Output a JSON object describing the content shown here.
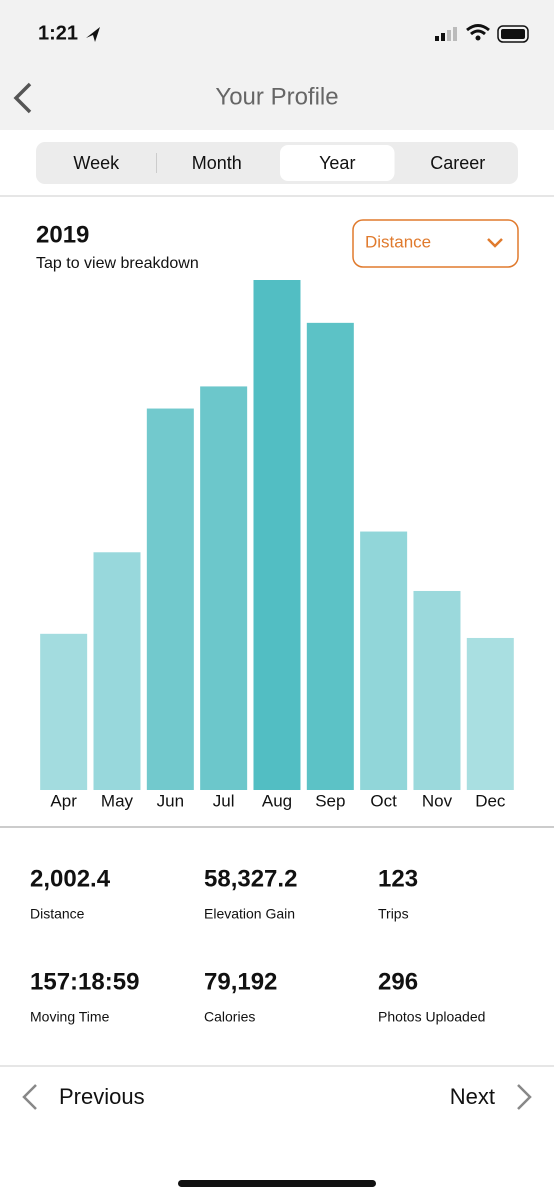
{
  "status_bar": {
    "time": "1:21"
  },
  "header": {
    "title": "Your Profile"
  },
  "tabs": {
    "items": [
      "Week",
      "Month",
      "Year",
      "Career"
    ],
    "selected": 2
  },
  "chart_header": {
    "year": "2019",
    "hint": "Tap to view breakdown",
    "metric": "Distance"
  },
  "chart_data": {
    "type": "bar",
    "categories": [
      "Apr",
      "May",
      "Jun",
      "Jul",
      "Aug",
      "Sep",
      "Oct",
      "Nov",
      "Dec"
    ],
    "values": [
      113,
      172,
      276,
      292,
      369,
      338,
      187,
      144,
      110
    ],
    "colors": [
      "#a3dcdf",
      "#98d8dc",
      "#72c9cd",
      "#6cc7cb",
      "#52bec3",
      "#5cc2c6",
      "#91d6d9",
      "#9bd9dc",
      "#a9dfe1"
    ],
    "ylim": [
      0,
      369
    ]
  },
  "stats": [
    {
      "value": "2,002.4",
      "label": "Distance"
    },
    {
      "value": "58,327.2",
      "label": "Elevation Gain"
    },
    {
      "value": "123",
      "label": "Trips"
    },
    {
      "value": "157:18:59",
      "label": "Moving Time"
    },
    {
      "value": "79,192",
      "label": "Calories"
    },
    {
      "value": "296",
      "label": "Photos Uploaded"
    }
  ],
  "nav": {
    "previous": "Previous",
    "next": "Next"
  }
}
